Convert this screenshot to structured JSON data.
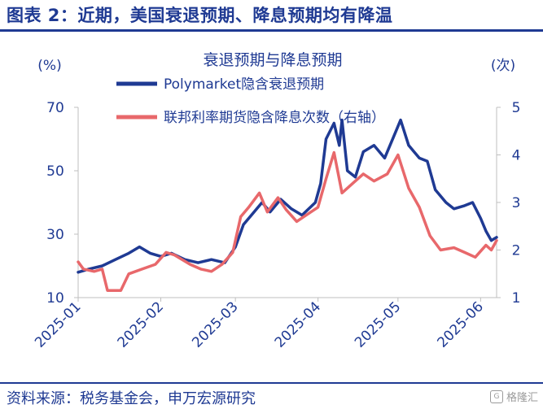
{
  "header": {
    "title": "图表 2：近期，美国衰退预期、降息预期均有降温"
  },
  "footer": {
    "source": "资料来源：税务基金会，申万宏源研究",
    "watermark": "格隆汇"
  },
  "chart_data": {
    "type": "line",
    "title": "衰退预期与降息预期",
    "left_unit": "(%)",
    "right_unit": "(次)",
    "y_left": {
      "range": [
        10,
        70
      ],
      "ticks": [
        10,
        30,
        50,
        70
      ]
    },
    "y_right": {
      "range": [
        1,
        5
      ],
      "ticks": [
        1,
        2,
        3,
        4,
        5
      ]
    },
    "x_axis": {
      "start": "2025-01-01",
      "end": "2025-06-07",
      "ticks": [
        "2025-01",
        "2025-02",
        "2025-03",
        "2025-04",
        "2025-05",
        "2025-06"
      ]
    },
    "series": [
      {
        "name": "Polymarket隐含衰退预期",
        "axis": "left",
        "color": "#1f3a93",
        "points": [
          [
            "2025-01-01",
            18
          ],
          [
            "2025-01-05",
            19
          ],
          [
            "2025-01-10",
            20
          ],
          [
            "2025-01-15",
            22
          ],
          [
            "2025-01-20",
            24
          ],
          [
            "2025-01-24",
            26
          ],
          [
            "2025-01-28",
            24
          ],
          [
            "2025-02-01",
            23
          ],
          [
            "2025-02-05",
            24
          ],
          [
            "2025-02-10",
            22
          ],
          [
            "2025-02-15",
            21
          ],
          [
            "2025-02-20",
            22
          ],
          [
            "2025-02-25",
            21
          ],
          [
            "2025-03-01",
            26
          ],
          [
            "2025-03-04",
            33
          ],
          [
            "2025-03-07",
            36
          ],
          [
            "2025-03-11",
            40
          ],
          [
            "2025-03-14",
            37
          ],
          [
            "2025-03-18",
            41
          ],
          [
            "2025-03-22",
            38
          ],
          [
            "2025-03-26",
            36
          ],
          [
            "2025-03-31",
            40
          ],
          [
            "2025-04-02",
            46
          ],
          [
            "2025-04-04",
            60
          ],
          [
            "2025-04-07",
            65
          ],
          [
            "2025-04-09",
            58
          ],
          [
            "2025-04-10",
            66
          ],
          [
            "2025-04-12",
            50
          ],
          [
            "2025-04-15",
            48
          ],
          [
            "2025-04-18",
            56
          ],
          [
            "2025-04-22",
            58
          ],
          [
            "2025-04-26",
            54
          ],
          [
            "2025-04-30",
            62
          ],
          [
            "2025-05-02",
            66
          ],
          [
            "2025-05-05",
            58
          ],
          [
            "2025-05-09",
            54
          ],
          [
            "2025-05-12",
            53
          ],
          [
            "2025-05-15",
            44
          ],
          [
            "2025-05-19",
            40
          ],
          [
            "2025-05-22",
            38
          ],
          [
            "2025-05-26",
            39
          ],
          [
            "2025-05-29",
            40
          ],
          [
            "2025-06-01",
            35
          ],
          [
            "2025-06-03",
            31
          ],
          [
            "2025-06-05",
            28
          ],
          [
            "2025-06-07",
            29
          ]
        ]
      },
      {
        "name": "联邦利率期货隐含降息次数（右轴）",
        "axis": "right",
        "color": "#e8686b",
        "points": [
          [
            "2025-01-01",
            1.75
          ],
          [
            "2025-01-03",
            1.6
          ],
          [
            "2025-01-07",
            1.55
          ],
          [
            "2025-01-10",
            1.6
          ],
          [
            "2025-01-12",
            1.15
          ],
          [
            "2025-01-17",
            1.15
          ],
          [
            "2025-01-20",
            1.5
          ],
          [
            "2025-01-25",
            1.6
          ],
          [
            "2025-01-30",
            1.7
          ],
          [
            "2025-02-03",
            1.95
          ],
          [
            "2025-02-06",
            1.9
          ],
          [
            "2025-02-12",
            1.7
          ],
          [
            "2025-02-16",
            1.6
          ],
          [
            "2025-02-20",
            1.55
          ],
          [
            "2025-02-24",
            1.7
          ],
          [
            "2025-02-28",
            1.95
          ],
          [
            "2025-03-03",
            2.7
          ],
          [
            "2025-03-06",
            2.9
          ],
          [
            "2025-03-10",
            3.2
          ],
          [
            "2025-03-13",
            2.8
          ],
          [
            "2025-03-17",
            3.1
          ],
          [
            "2025-03-20",
            2.85
          ],
          [
            "2025-03-24",
            2.6
          ],
          [
            "2025-03-28",
            2.75
          ],
          [
            "2025-04-01",
            2.9
          ],
          [
            "2025-04-04",
            3.5
          ],
          [
            "2025-04-07",
            4.05
          ],
          [
            "2025-04-10",
            3.2
          ],
          [
            "2025-04-14",
            3.4
          ],
          [
            "2025-04-18",
            3.6
          ],
          [
            "2025-04-22",
            3.45
          ],
          [
            "2025-04-27",
            3.6
          ],
          [
            "2025-05-01",
            4.0
          ],
          [
            "2025-05-05",
            3.3
          ],
          [
            "2025-05-09",
            2.9
          ],
          [
            "2025-05-13",
            2.3
          ],
          [
            "2025-05-17",
            2.0
          ],
          [
            "2025-05-22",
            2.05
          ],
          [
            "2025-05-26",
            1.95
          ],
          [
            "2025-05-30",
            1.85
          ],
          [
            "2025-06-03",
            2.1
          ],
          [
            "2025-06-05",
            2.0
          ],
          [
            "2025-06-07",
            2.2
          ]
        ]
      }
    ]
  }
}
